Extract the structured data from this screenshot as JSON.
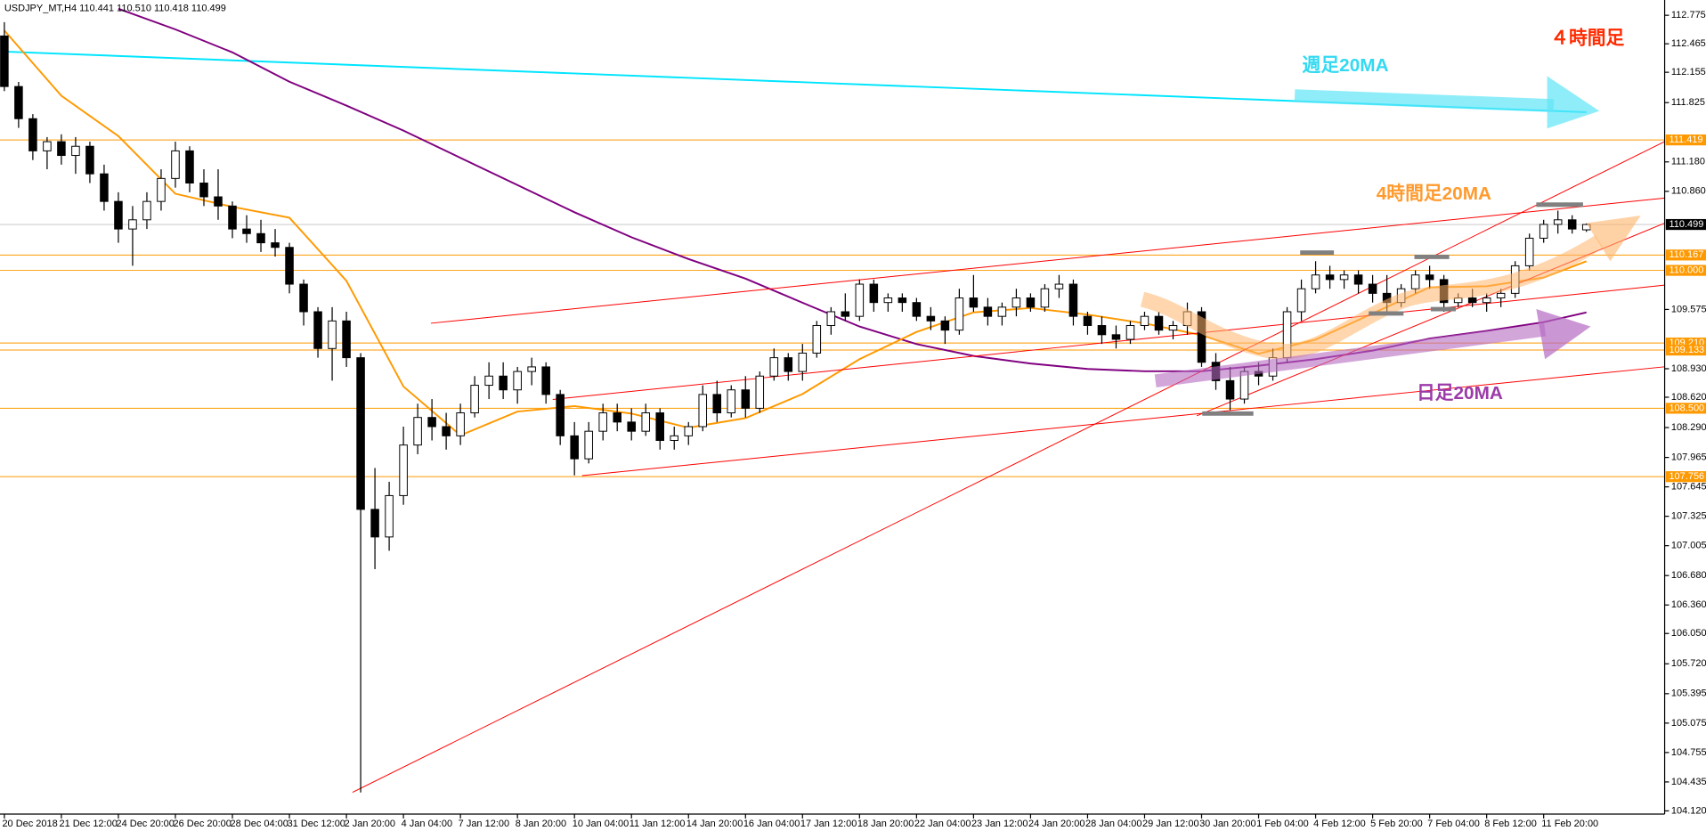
{
  "chart_data": {
    "type": "candlestick",
    "title": "USDJPY_MT,H4  110.441 110.510 110.418 110.499",
    "categories": [
      "20 Dec 2018",
      null,
      null,
      null,
      "21 Dec 12:00",
      null,
      null,
      null,
      "24 Dec 20:00",
      null,
      null,
      null,
      "26 Dec 20:00",
      null,
      null,
      null,
      "28 Dec 04:00",
      null,
      null,
      null,
      "31 Dec 12:00",
      null,
      null,
      null,
      "2 Jan 20:00",
      null,
      null,
      null,
      "4 Jan 04:00",
      null,
      null,
      null,
      "7 Jan 12:00",
      null,
      null,
      null,
      "8 Jan 20:00",
      null,
      null,
      null,
      "10 Jan 04:00",
      null,
      null,
      null,
      "11 Jan 12:00",
      null,
      null,
      null,
      "14 Jan 20:00",
      null,
      null,
      null,
      "16 Jan 04:00",
      null,
      null,
      null,
      "17 Jan 12:00",
      null,
      null,
      null,
      "18 Jan 20:00",
      null,
      null,
      null,
      "22 Jan 04:00",
      null,
      null,
      null,
      "23 Jan 12:00",
      null,
      null,
      null,
      "24 Jan 20:00",
      null,
      null,
      null,
      "28 Jan 04:00",
      null,
      null,
      null,
      "29 Jan 12:00",
      null,
      null,
      null,
      "30 Jan 20:00",
      null,
      null,
      null,
      "1 Feb 04:00",
      null,
      null,
      null,
      "4 Feb 12:00",
      null,
      null,
      null,
      "5 Feb 20:00",
      null,
      null,
      null,
      "7 Feb 04:00",
      null,
      null,
      null,
      "8 Feb 12:00",
      null,
      null,
      null,
      "11 Feb 20:00",
      null,
      null,
      null
    ],
    "open": [
      112.55,
      112.0,
      111.65,
      111.3,
      111.4,
      111.25,
      111.35,
      111.05,
      110.75,
      110.45,
      110.55,
      110.75,
      111.0,
      111.3,
      110.95,
      110.8,
      110.7,
      110.45,
      110.4,
      110.3,
      110.25,
      109.85,
      109.55,
      109.15,
      109.45,
      109.05,
      107.4,
      107.1,
      107.55,
      108.1,
      108.4,
      108.3,
      108.2,
      108.45,
      108.75,
      108.85,
      108.7,
      108.9,
      108.95,
      108.65,
      108.2,
      107.95,
      108.25,
      108.45,
      108.35,
      108.25,
      108.45,
      108.15,
      108.2,
      108.3,
      108.65,
      108.45,
      108.7,
      108.5,
      108.85,
      109.05,
      108.9,
      109.1,
      109.4,
      109.55,
      109.5,
      109.85,
      109.65,
      109.7,
      109.65,
      109.5,
      109.45,
      109.35,
      109.7,
      109.6,
      109.5,
      109.6,
      109.7,
      109.6,
      109.8,
      109.85,
      109.5,
      109.4,
      109.3,
      109.25,
      109.4,
      109.5,
      109.35,
      109.4,
      109.55,
      109.0,
      108.8,
      108.6,
      108.9,
      108.85,
      109.05,
      109.55,
      109.8,
      109.95,
      109.9,
      109.95,
      109.85,
      109.75,
      109.65,
      109.8,
      109.95,
      109.9,
      109.65,
      109.7,
      109.65,
      109.7,
      109.75,
      110.05,
      110.35,
      110.5,
      110.55,
      110.441
    ],
    "high": [
      112.7,
      112.05,
      111.7,
      111.45,
      111.48,
      111.45,
      111.4,
      111.15,
      110.85,
      110.7,
      110.85,
      111.1,
      111.4,
      111.35,
      111.1,
      111.1,
      110.75,
      110.6,
      110.55,
      110.45,
      110.3,
      109.9,
      109.6,
      109.6,
      109.55,
      109.1,
      107.85,
      107.7,
      108.3,
      108.55,
      108.6,
      108.45,
      108.55,
      108.85,
      109.0,
      109.0,
      108.95,
      109.05,
      109.0,
      108.7,
      108.35,
      108.35,
      108.55,
      108.55,
      108.5,
      108.55,
      108.5,
      108.3,
      108.35,
      108.75,
      108.8,
      108.75,
      108.85,
      108.9,
      109.15,
      109.1,
      109.2,
      109.45,
      109.6,
      109.75,
      109.9,
      109.9,
      109.75,
      109.75,
      109.7,
      109.6,
      109.5,
      109.8,
      109.95,
      109.7,
      109.65,
      109.8,
      109.75,
      109.85,
      109.95,
      109.9,
      109.55,
      109.5,
      109.4,
      109.45,
      109.55,
      109.55,
      109.45,
      109.65,
      109.6,
      109.1,
      108.95,
      108.95,
      109.0,
      109.15,
      109.6,
      109.9,
      110.1,
      110.05,
      110.0,
      110.0,
      109.95,
      109.95,
      109.85,
      110.0,
      110.05,
      109.95,
      109.75,
      109.8,
      109.75,
      109.8,
      110.1,
      110.4,
      110.55,
      110.65,
      110.6,
      110.51
    ],
    "low": [
      111.95,
      111.55,
      111.2,
      111.1,
      111.15,
      111.05,
      110.95,
      110.65,
      110.3,
      110.05,
      110.45,
      110.65,
      110.9,
      110.85,
      110.7,
      110.55,
      110.35,
      110.3,
      110.2,
      110.15,
      109.75,
      109.4,
      109.05,
      108.8,
      108.95,
      104.32,
      106.75,
      106.95,
      107.45,
      108.0,
      108.15,
      108.05,
      108.1,
      108.4,
      108.6,
      108.6,
      108.55,
      108.75,
      108.55,
      108.1,
      107.77,
      107.9,
      108.15,
      108.25,
      108.15,
      108.2,
      108.05,
      108.05,
      108.1,
      108.25,
      108.35,
      108.4,
      108.4,
      108.45,
      108.8,
      108.8,
      108.8,
      109.05,
      109.3,
      109.45,
      109.45,
      109.55,
      109.55,
      109.55,
      109.45,
      109.35,
      109.2,
      109.3,
      109.55,
      109.4,
      109.4,
      109.5,
      109.55,
      109.55,
      109.7,
      109.4,
      109.3,
      109.2,
      109.15,
      109.2,
      109.35,
      109.3,
      109.25,
      109.3,
      108.95,
      108.7,
      108.48,
      108.55,
      108.75,
      108.8,
      109.0,
      109.45,
      109.75,
      109.8,
      109.8,
      109.75,
      109.65,
      109.55,
      109.6,
      109.75,
      109.8,
      109.55,
      109.6,
      109.6,
      109.55,
      109.6,
      109.7,
      110.0,
      110.3,
      110.4,
      110.4,
      110.418
    ],
    "close": [
      112.0,
      111.65,
      111.3,
      111.4,
      111.25,
      111.35,
      111.05,
      110.75,
      110.45,
      110.55,
      110.75,
      111.0,
      111.3,
      110.95,
      110.8,
      110.7,
      110.45,
      110.4,
      110.3,
      110.25,
      109.85,
      109.55,
      109.15,
      109.45,
      109.05,
      107.4,
      107.1,
      107.55,
      108.1,
      108.4,
      108.3,
      108.2,
      108.45,
      108.75,
      108.85,
      108.7,
      108.9,
      108.95,
      108.65,
      108.2,
      107.95,
      108.25,
      108.45,
      108.35,
      108.25,
      108.45,
      108.15,
      108.2,
      108.3,
      108.65,
      108.45,
      108.7,
      108.5,
      108.85,
      109.05,
      108.9,
      109.1,
      109.4,
      109.55,
      109.5,
      109.85,
      109.65,
      109.7,
      109.65,
      109.5,
      109.45,
      109.35,
      109.7,
      109.6,
      109.5,
      109.6,
      109.7,
      109.6,
      109.8,
      109.85,
      109.5,
      109.4,
      109.3,
      109.25,
      109.4,
      109.5,
      109.35,
      109.4,
      109.55,
      109.0,
      108.8,
      108.6,
      108.9,
      108.85,
      109.05,
      109.55,
      109.8,
      109.95,
      109.9,
      109.95,
      109.85,
      109.75,
      109.65,
      109.8,
      109.95,
      109.9,
      109.65,
      109.7,
      109.65,
      109.7,
      109.75,
      110.05,
      110.35,
      110.5,
      110.55,
      110.45,
      110.499
    ],
    "up_color": "#ffffff",
    "down_color": "#000000",
    "ylim": [
      104.085,
      112.941
    ],
    "yticks": [
      112.775,
      112.465,
      112.155,
      111.825,
      {
        "value": 111.18,
        "label": "111.180"
      },
      {
        "value": 110.86,
        "label": "110.860"
      },
      109.575,
      {
        "value": 108.93,
        "label": "108.930"
      },
      {
        "value": 108.62,
        "label": "108.620"
      },
      {
        "value": 108.29,
        "label": "108.290"
      },
      107.965,
      107.645,
      107.325,
      107.005,
      {
        "value": 106.68,
        "label": "106.680"
      },
      {
        "value": 106.36,
        "label": "106.360"
      },
      {
        "value": 106.05,
        "label": "106.050"
      },
      {
        "value": 105.72,
        "label": "105.720"
      },
      105.395,
      105.075,
      104.755,
      104.435,
      {
        "value": 104.12,
        "label": "104.120"
      }
    ],
    "levels": [
      111.419,
      110.167,
      {
        "value": 110,
        "label": "110.000"
      },
      {
        "value": 109.21,
        "label": "109.210"
      },
      109.133,
      {
        "value": 108.5,
        "label": "108.500"
      },
      107.756
    ],
    "level_color": "#ff9900",
    "current_price": 110.499,
    "moving_averages": [
      {
        "color": "#00e5ff",
        "x": [
          0,
          111
        ],
        "values": [
          112.38,
          111.72
        ]
      },
      {
        "color": "#800080",
        "x": [
          8,
          12,
          16,
          20,
          24,
          28,
          32,
          36,
          40,
          44,
          48,
          52,
          56,
          60,
          64,
          68,
          72,
          76,
          80,
          84,
          88,
          92,
          96,
          100,
          104,
          108,
          111
        ],
        "values": [
          112.846,
          112.621,
          112.372,
          112.052,
          111.792,
          111.52,
          111.224,
          110.928,
          110.632,
          110.36,
          110.123,
          109.91,
          109.649,
          109.389,
          109.199,
          109.069,
          108.986,
          108.927,
          108.903,
          108.903,
          108.963,
          109.034,
          109.128,
          109.259,
          109.342,
          109.436,
          109.543
        ]
      },
      {
        "color": "#ff9900",
        "x": [
          0,
          4,
          8,
          12,
          16,
          20,
          24,
          28,
          32,
          36,
          40,
          44,
          48,
          52,
          56,
          60,
          64,
          68,
          72,
          76,
          80,
          84,
          88,
          92,
          96,
          100,
          104,
          108,
          111
        ],
        "values": [
          112.609,
          111.899,
          111.461,
          110.833,
          110.691,
          110.573,
          109.886,
          108.737,
          108.205,
          108.465,
          108.524,
          108.442,
          108.288,
          108.394,
          108.655,
          109.034,
          109.33,
          109.543,
          109.59,
          109.519,
          109.424,
          109.294,
          109.093,
          109.247,
          109.531,
          109.815,
          109.827,
          109.922,
          110.099
        ]
      }
    ],
    "annotations": [
      {
        "text": "４時間足",
        "color": "#ff2a00"
      },
      {
        "text": "週足20MA",
        "color": "#33d9f2"
      },
      {
        "text": "4時間足20MA",
        "color": "#ff9a2e"
      },
      {
        "text": "日足20MA",
        "color": "#9b3aa8"
      }
    ]
  }
}
